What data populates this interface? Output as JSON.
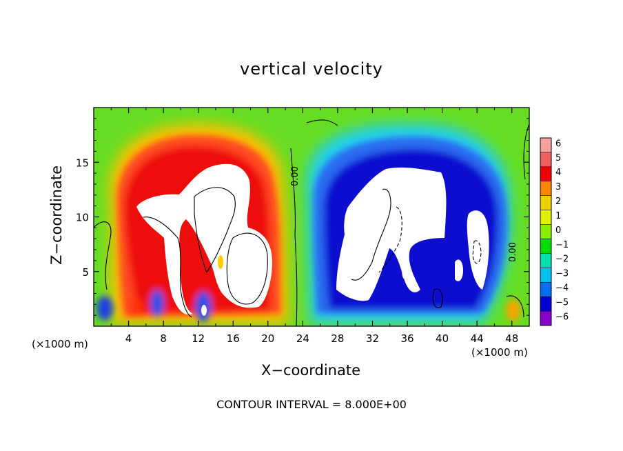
{
  "chart_data": {
    "type": "heatmap",
    "title": "vertical velocity",
    "xlabel": "X−coordinate",
    "ylabel": "Z−coordinate",
    "x_unit_left": "(×1000 m)",
    "x_unit_right": "(×1000 m)",
    "x_ticks": [
      "4",
      "8",
      "12",
      "16",
      "20",
      "24",
      "28",
      "32",
      "36",
      "40",
      "44",
      "48"
    ],
    "y_ticks": [
      "5",
      "10",
      "15"
    ],
    "xlim": [
      0,
      50
    ],
    "ylim": [
      0,
      20
    ],
    "colorbar_labels": [
      "6",
      "5",
      "4",
      "3",
      "2",
      "1",
      "0",
      "−1",
      "−2",
      "−3",
      "−4",
      "−5",
      "−6"
    ],
    "colorbar_colors": [
      "#f8a0a0",
      "#f06060",
      "#ee0000",
      "#ff8800",
      "#f0d000",
      "#e0f000",
      "#88ee00",
      "#00dd00",
      "#00e0b0",
      "#00c0f0",
      "#0070f0",
      "#0000d0",
      "#8800cc"
    ],
    "contour_label": "0.00",
    "contour_interval_text": "CONTOUR INTERVAL = 8.000E+00",
    "colors": {
      "neutral": "#66dd22",
      "updraft": "#ee1111",
      "downdraft": "#1010d0",
      "saturated": "#ffffff"
    }
  }
}
